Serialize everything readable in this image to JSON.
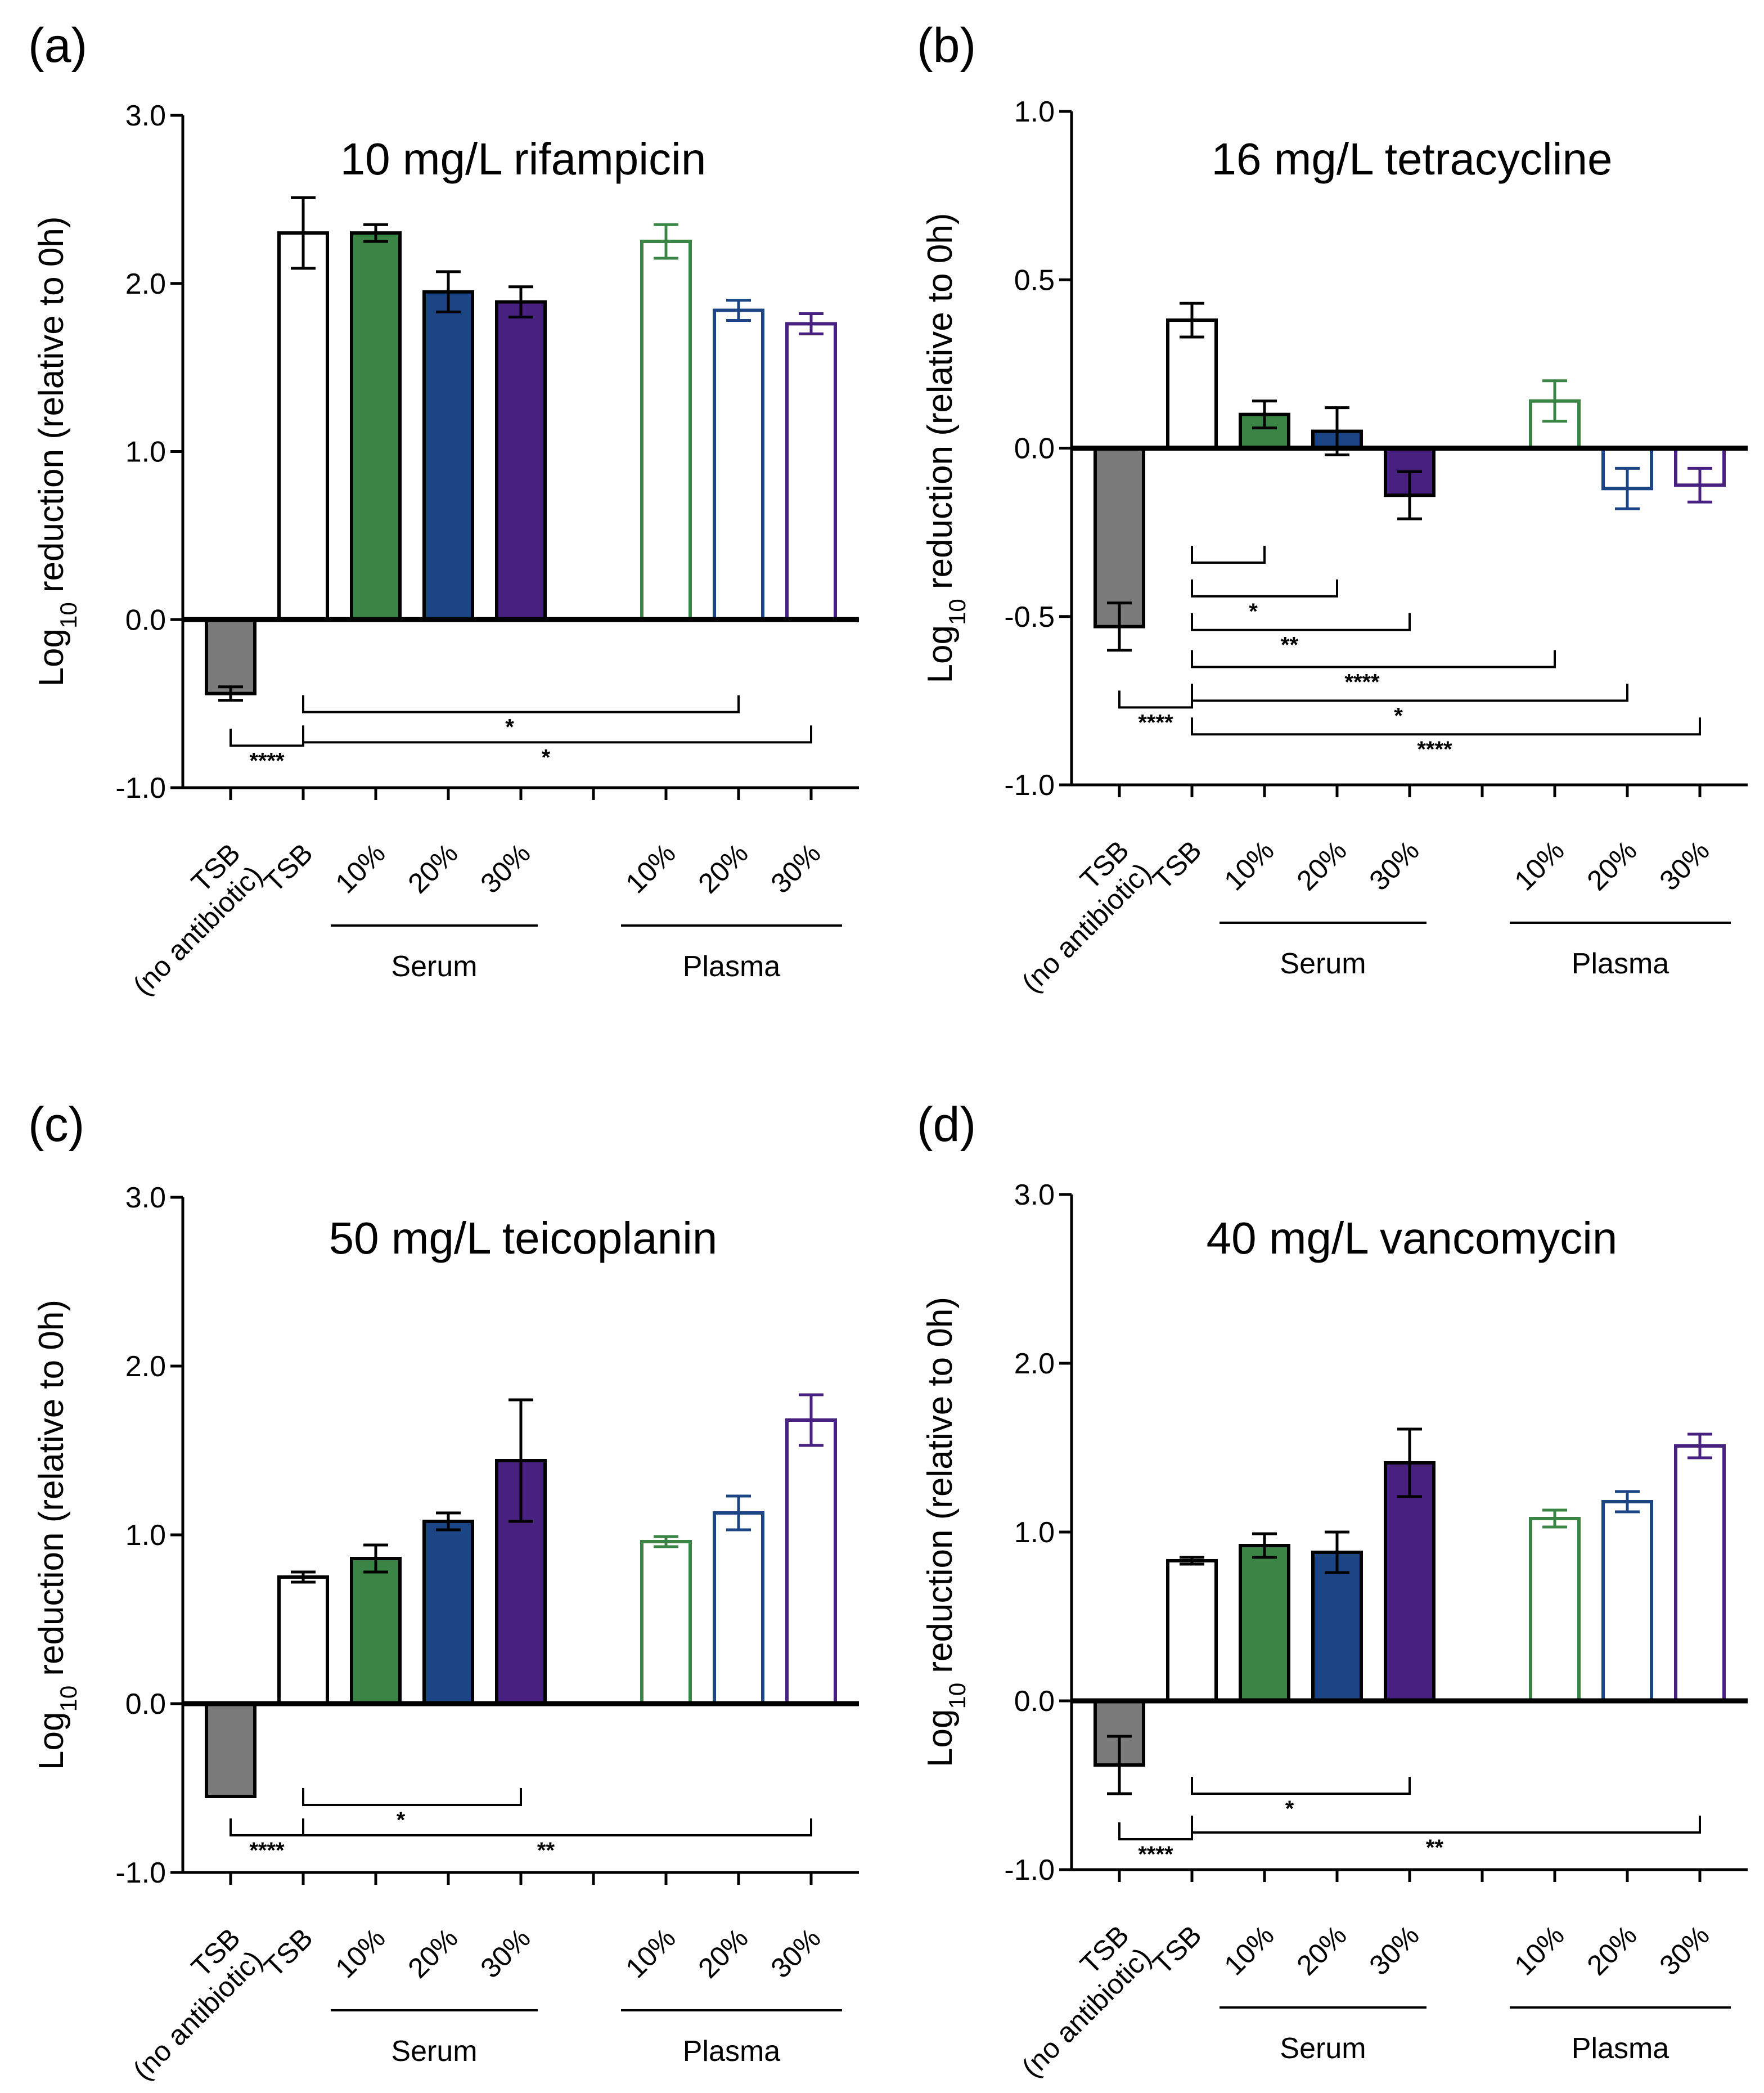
{
  "colors": {
    "axis": "#000000",
    "grey": "#7a7a7a",
    "green": "#3a8445",
    "blue": "#1b4585",
    "purple": "#48207f",
    "tsb": "#ffffff"
  },
  "y_label_main": "Log",
  "y_label_sub": "10",
  "y_label_rest": " reduction (relative to 0h)",
  "x_labels": {
    "tsb_no_ab_line1": "TSB",
    "tsb_no_ab_line2": "(no antibiotic)",
    "tsb": "TSB",
    "p10": "10%",
    "p20": "20%",
    "p30": "30%"
  },
  "groups": {
    "serum": "Serum",
    "plasma": "Plasma"
  },
  "chart_data": [
    {
      "type": "bar",
      "panel": "(a)",
      "title": "10 mg/L rifampicin",
      "ylim": [
        -1.0,
        3.0
      ],
      "yticks": [
        "-1.0",
        "0.0",
        "1.0",
        "2.0",
        "3.0"
      ],
      "categories": [
        "TSB (no antibiotic)",
        "TSB",
        "Serum 10%",
        "Serum 20%",
        "Serum 30%",
        "Plasma 10%",
        "Plasma 20%",
        "Plasma 30%"
      ],
      "values": [
        -0.44,
        2.3,
        2.3,
        1.95,
        1.89,
        2.25,
        1.84,
        1.76
      ],
      "errors": [
        0.04,
        0.21,
        0.05,
        0.12,
        0.09,
        0.1,
        0.06,
        0.06
      ],
      "significance": [
        {
          "from": 0,
          "to": 1,
          "y": -0.75,
          "label": "****"
        },
        {
          "from": 1,
          "to": 6,
          "y": -0.55,
          "label": "*"
        },
        {
          "from": 1,
          "to": 7,
          "y": -0.73,
          "label": "*"
        }
      ]
    },
    {
      "type": "bar",
      "panel": "(b)",
      "title": "16 mg/L tetracycline",
      "ylim": [
        -1.0,
        1.0
      ],
      "yticks": [
        "-1.0",
        "-0.5",
        "0.0",
        "0.5",
        "1.0"
      ],
      "categories": [
        "TSB (no antibiotic)",
        "TSB",
        "Serum 10%",
        "Serum 20%",
        "Serum 30%",
        "Plasma 10%",
        "Plasma 20%",
        "Plasma 30%"
      ],
      "values": [
        -0.53,
        0.38,
        0.1,
        0.05,
        -0.14,
        0.14,
        -0.12,
        -0.11
      ],
      "errors": [
        0.07,
        0.05,
        0.04,
        0.07,
        0.07,
        0.06,
        0.06,
        0.05
      ],
      "significance": [
        {
          "from": 0,
          "to": 1,
          "y": -0.77,
          "label": "****"
        },
        {
          "from": 1,
          "to": 2,
          "y": -0.34,
          "label": ""
        },
        {
          "from": 1,
          "to": 3,
          "y": -0.44,
          "label": "*"
        },
        {
          "from": 1,
          "to": 4,
          "y": -0.54,
          "label": "**"
        },
        {
          "from": 1,
          "to": 5,
          "y": -0.65,
          "label": "****"
        },
        {
          "from": 1,
          "to": 6,
          "y": -0.75,
          "label": "*"
        },
        {
          "from": 1,
          "to": 7,
          "y": -0.85,
          "label": "****"
        }
      ]
    },
    {
      "type": "bar",
      "panel": "(c)",
      "title": "50 mg/L teicoplanin",
      "ylim": [
        -1.0,
        3.0
      ],
      "yticks": [
        "-1.0",
        "0.0",
        "1.0",
        "2.0",
        "3.0"
      ],
      "categories": [
        "TSB (no antibiotic)",
        "TSB",
        "Serum 10%",
        "Serum 20%",
        "Serum 30%",
        "Plasma 10%",
        "Plasma 20%",
        "Plasma 30%"
      ],
      "values": [
        -0.55,
        0.75,
        0.86,
        1.08,
        1.44,
        0.96,
        1.13,
        1.68
      ],
      "errors": [
        0.0,
        0.03,
        0.08,
        0.05,
        0.36,
        0.03,
        0.1,
        0.15
      ],
      "significance": [
        {
          "from": 0,
          "to": 1,
          "y": -0.78,
          "label": "****"
        },
        {
          "from": 1,
          "to": 4,
          "y": -0.6,
          "label": "*"
        },
        {
          "from": 1,
          "to": 7,
          "y": -0.78,
          "label": "**"
        }
      ]
    },
    {
      "type": "bar",
      "panel": "(d)",
      "title": "40 mg/L vancomycin",
      "ylim": [
        -1.0,
        3.0
      ],
      "yticks": [
        "-1.0",
        "0.0",
        "1.0",
        "2.0",
        "3.0"
      ],
      "categories": [
        "TSB (no antibiotic)",
        "TSB",
        "Serum 10%",
        "Serum 20%",
        "Serum 30%",
        "Plasma 10%",
        "Plasma 20%",
        "Plasma 30%"
      ],
      "values": [
        -0.38,
        0.83,
        0.92,
        0.88,
        1.41,
        1.08,
        1.18,
        1.51
      ],
      "errors": [
        0.17,
        0.02,
        0.07,
        0.12,
        0.2,
        0.05,
        0.06,
        0.07
      ],
      "significance": [
        {
          "from": 0,
          "to": 1,
          "y": -0.82,
          "label": "****"
        },
        {
          "from": 1,
          "to": 4,
          "y": -0.55,
          "label": "*"
        },
        {
          "from": 1,
          "to": 7,
          "y": -0.78,
          "label": "**"
        }
      ]
    }
  ]
}
